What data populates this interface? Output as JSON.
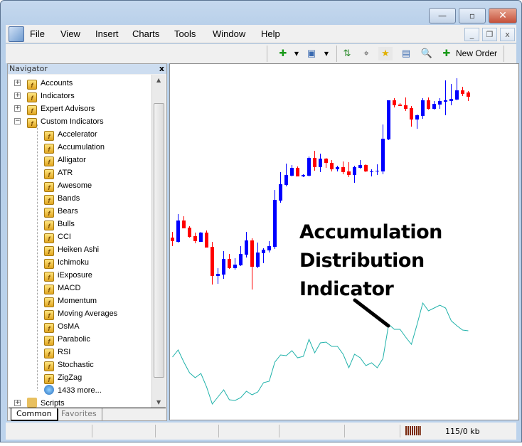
{
  "window": {
    "minimize": "—",
    "maximize": "▫",
    "close": "✕"
  },
  "menu": [
    "File",
    "View",
    "Insert",
    "Charts",
    "Tools",
    "Window",
    "Help"
  ],
  "mdi": {
    "minimize": "_",
    "restore": "❐",
    "close": "x"
  },
  "toolbar": {
    "new_order": "New Order"
  },
  "navigator": {
    "title": "Navigator",
    "close": "x",
    "top_items": [
      {
        "label": "Accounts",
        "icon": "accounts-icon"
      },
      {
        "label": "Indicators",
        "icon": "indicator-icon"
      },
      {
        "label": "Expert Advisors",
        "icon": "expert-icon"
      },
      {
        "label": "Custom Indicators",
        "icon": "indicator-icon"
      }
    ],
    "custom": [
      "Accelerator",
      "Accumulation",
      "Alligator",
      "ATR",
      "Awesome",
      "Bands",
      "Bears",
      "Bulls",
      "CCI",
      "Heiken Ashi",
      "Ichimoku",
      "iExposure",
      "MACD",
      "Momentum",
      "Moving Averages",
      "OsMA",
      "Parabolic",
      "RSI",
      "Stochastic",
      "ZigZag"
    ],
    "more": "1433 more...",
    "scripts": "Scripts",
    "tabs": [
      "Common",
      "Favorites"
    ],
    "active_tab": "Common"
  },
  "chart": {
    "annotation": [
      "Accumulation",
      "Distribution",
      "Indicator"
    ],
    "colors": {
      "bull": "#0000ff",
      "bear": "#ff0000",
      "indicator": "#20b2aa",
      "arrow": "#000000"
    }
  },
  "chart_data": {
    "type": "candlestick",
    "candles_ohlc": [
      [
        67,
        75,
        55,
        62
      ],
      [
        61,
        100,
        60,
        91
      ],
      [
        91,
        97,
        80,
        80
      ],
      [
        81,
        83,
        67,
        68
      ],
      [
        69,
        74,
        59,
        62
      ],
      [
        61,
        75,
        61,
        74
      ],
      [
        74,
        77,
        53,
        53
      ],
      [
        54,
        61,
        1,
        13
      ],
      [
        13,
        24,
        2,
        16
      ],
      [
        15,
        48,
        9,
        37
      ],
      [
        37,
        44,
        23,
        24
      ],
      [
        24,
        38,
        22,
        29
      ],
      [
        28,
        55,
        27,
        44
      ],
      [
        43,
        75,
        39,
        63
      ],
      [
        63,
        66,
        -6,
        26
      ],
      [
        26,
        60,
        24,
        46
      ],
      [
        45,
        52,
        31,
        50
      ],
      [
        49,
        62,
        46,
        55
      ],
      [
        54,
        134,
        51,
        120
      ],
      [
        119,
        159,
        116,
        142
      ],
      [
        141,
        171,
        139,
        155
      ],
      [
        154,
        169,
        153,
        165
      ],
      [
        165,
        167,
        153,
        153
      ],
      [
        153,
        156,
        152,
        155
      ],
      [
        154,
        181,
        153,
        179
      ],
      [
        179,
        189,
        161,
        166
      ],
      [
        166,
        185,
        159,
        178
      ],
      [
        178,
        179,
        165,
        172
      ],
      [
        172,
        176,
        160,
        163
      ],
      [
        163,
        168,
        160,
        166
      ],
      [
        166,
        174,
        156,
        159
      ],
      [
        160,
        173,
        152,
        155
      ],
      [
        155,
        168,
        144,
        166
      ],
      [
        165,
        176,
        164,
        169
      ],
      [
        169,
        170,
        159,
        160
      ],
      [
        159,
        163,
        153,
        160
      ],
      [
        160,
        170,
        155,
        161
      ],
      [
        160,
        226,
        156,
        206
      ],
      [
        205,
        260,
        204,
        260
      ],
      [
        260,
        263,
        250,
        253
      ],
      [
        254,
        256,
        252,
        252
      ],
      [
        253,
        264,
        245,
        248
      ],
      [
        249,
        252,
        223,
        233
      ],
      [
        233,
        240,
        220,
        239
      ],
      [
        238,
        263,
        234,
        260
      ],
      [
        260,
        264,
        247,
        248
      ],
      [
        248,
        259,
        247,
        255
      ],
      [
        254,
        263,
        248,
        259
      ],
      [
        258,
        288,
        239,
        260
      ],
      [
        259,
        283,
        253,
        262
      ],
      [
        261,
        291,
        260,
        274
      ],
      [
        274,
        279,
        266,
        269
      ],
      [
        271,
        273,
        259,
        265
      ]
    ],
    "indicator_values": [
      99,
      109,
      92,
      77,
      70,
      76,
      57,
      33,
      43,
      53,
      39,
      38,
      42,
      51,
      46,
      50,
      63,
      65,
      92,
      102,
      101,
      108,
      98,
      100,
      124,
      105,
      119,
      120,
      114,
      114,
      103,
      84,
      103,
      98,
      87,
      91,
      84,
      97,
      145,
      138,
      138,
      127,
      117,
      145,
      175,
      164,
      168,
      172,
      168,
      150,
      143,
      137,
      136
    ],
    "legend": "none",
    "grid": false
  }
}
